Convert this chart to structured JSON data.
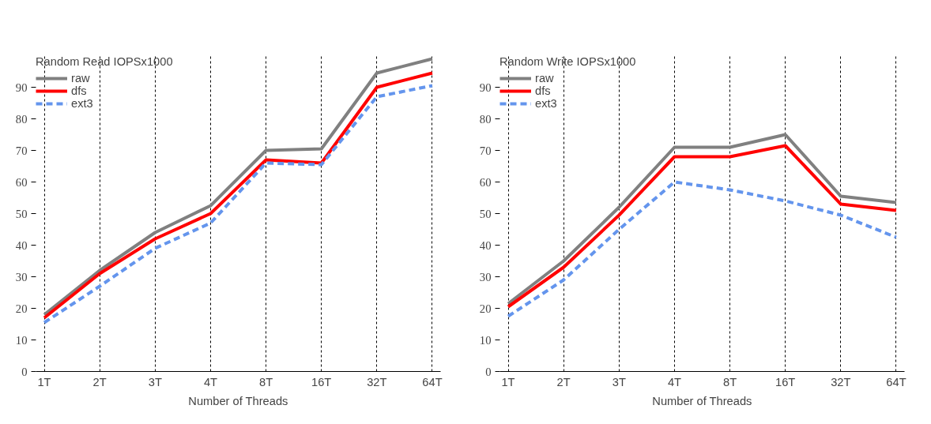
{
  "chart_data": [
    {
      "type": "line",
      "legend_title": "Random Read IOPSx1000",
      "xlabel": "Number of Threads",
      "categories": [
        "1T",
        "2T",
        "3T",
        "4T",
        "8T",
        "16T",
        "32T",
        "64T"
      ],
      "ylim": [
        0,
        100
      ],
      "yticks": [
        0,
        10,
        20,
        30,
        40,
        50,
        60,
        70,
        80,
        90
      ],
      "grid": "x",
      "legend": "top left",
      "marker": "none",
      "series": [
        {
          "name": "raw",
          "color": "#808080",
          "line_style": "solid",
          "values": [
            18,
            32,
            44,
            52.5,
            70,
            70.5,
            94.5,
            99
          ]
        },
        {
          "name": "dfs",
          "color": "#ff0000",
          "line_style": "solid",
          "values": [
            17,
            31,
            42,
            50,
            67,
            66,
            90,
            94.5
          ]
        },
        {
          "name": "ext3",
          "color": "#6495ed",
          "line_style": "dashed",
          "values": [
            15.5,
            27,
            39,
            47,
            66,
            65.5,
            87,
            90.5
          ]
        }
      ]
    },
    {
      "type": "line",
      "legend_title": "Random Write IOPSx1000",
      "xlabel": "Number of Threads",
      "categories": [
        "1T",
        "2T",
        "3T",
        "4T",
        "8T",
        "16T",
        "32T",
        "64T"
      ],
      "ylim": [
        0,
        100
      ],
      "yticks": [
        0,
        10,
        20,
        30,
        40,
        50,
        60,
        70,
        80,
        90
      ],
      "grid": "x",
      "legend": "top left",
      "marker": "none",
      "series": [
        {
          "name": "raw",
          "color": "#808080",
          "line_style": "solid",
          "values": [
            21.5,
            35,
            52,
            71,
            71,
            75,
            55.5,
            53.5
          ]
        },
        {
          "name": "dfs",
          "color": "#ff0000",
          "line_style": "solid",
          "values": [
            20.5,
            33,
            49.5,
            68,
            68,
            71.5,
            53,
            51
          ]
        },
        {
          "name": "ext3",
          "color": "#6495ed",
          "line_style": "dashed",
          "values": [
            17.5,
            29,
            45,
            60,
            57.5,
            54,
            49.5,
            42.5
          ]
        }
      ]
    }
  ]
}
